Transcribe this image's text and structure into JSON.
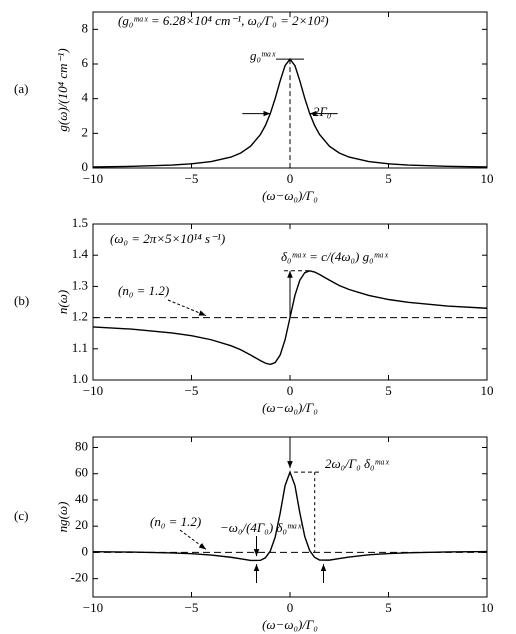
{
  "chart_data": [
    {
      "type": "line",
      "panel_label": "(a)",
      "xlabel": "(ω−ω₀)/Γ₀",
      "ylabel": "g(ω)/(10⁴ cm⁻¹)",
      "annotations": [
        "(g₀ᵐᵃˣ = 6.28×10⁴ cm⁻¹, ω₀/Γ₀ = 2×10²)",
        "g₀ᵐᵃˣ",
        "2Γ₀"
      ],
      "x": [
        -10,
        -8,
        -6,
        -5,
        -4,
        -3,
        -2.5,
        -2,
        -1.5,
        -1.25,
        -1,
        -0.75,
        -0.5,
        -0.25,
        0,
        0.25,
        0.5,
        0.75,
        1,
        1.25,
        1.5,
        2,
        2.5,
        3,
        4,
        5,
        6,
        8,
        10
      ],
      "values": [
        0.062,
        0.097,
        0.17,
        0.242,
        0.369,
        0.628,
        0.866,
        1.256,
        1.932,
        2.451,
        3.14,
        4.019,
        5.024,
        5.911,
        6.28,
        5.911,
        5.024,
        4.019,
        3.14,
        2.451,
        1.932,
        1.256,
        0.866,
        0.628,
        0.369,
        0.242,
        0.17,
        0.097,
        0.062
      ],
      "color": "#000000",
      "xlim": [
        -10,
        10
      ],
      "xticks": [
        {
          "value": -10,
          "label": "−10"
        },
        {
          "value": -5,
          "label": "−5"
        },
        0,
        5,
        10
      ],
      "ylim": [
        0,
        9
      ],
      "yticks": [
        0,
        2,
        4,
        6,
        8
      ]
    },
    {
      "type": "line",
      "panel_label": "(b)",
      "xlabel": "(ω−ω₀)/Γ₀",
      "ylabel": "n(ω)",
      "annotations": [
        "(ω₀ = 2π×5×10¹⁴ s⁻¹)",
        "δ₀ᵐᵃˣ = c/(4ω₀) g₀ᵐᵃˣ",
        "(n₀ = 1.2)"
      ],
      "x": [
        -10,
        -8,
        -6,
        -5,
        -4,
        -3,
        -2.5,
        -2,
        -1.5,
        -1.25,
        -1,
        -0.75,
        -0.5,
        -0.25,
        0,
        0.25,
        0.5,
        0.75,
        1,
        1.25,
        1.5,
        2,
        2.5,
        3,
        4,
        5,
        6,
        8,
        10
      ],
      "values": [
        1.17,
        1.163,
        1.151,
        1.142,
        1.129,
        1.11,
        1.097,
        1.08,
        1.062,
        1.054,
        1.05,
        1.056,
        1.08,
        1.129,
        1.2,
        1.271,
        1.32,
        1.344,
        1.35,
        1.346,
        1.338,
        1.32,
        1.303,
        1.29,
        1.271,
        1.258,
        1.249,
        1.237,
        1.23
      ],
      "color": "#000000",
      "xlim": [
        -10,
        10
      ],
      "xticks": [
        {
          "value": -10,
          "label": "−10"
        },
        {
          "value": -5,
          "label": "−5"
        },
        0,
        5,
        10
      ],
      "ylim": [
        1.0,
        1.5
      ],
      "yticks": [
        {
          "value": 1.0,
          "label": "1.0"
        },
        1.1,
        1.2,
        1.3,
        1.4,
        {
          "value": 1.5,
          "label": "1.5"
        }
      ]
    },
    {
      "type": "line",
      "panel_label": "(c)",
      "xlabel": "(ω−ω₀)/Γ₀",
      "ylabel": "ng(ω)",
      "annotations": [
        "(n₀ = 1.2)",
        "−ω₀/(4Γ₀) δ₀ᵐᵃˣ",
        "2ω₀/Γ₀ δ₀ᵐᵃˣ"
      ],
      "x": [
        -10,
        -8,
        -6,
        -5,
        -4,
        -3,
        -2.5,
        -2,
        -1.5,
        -1.25,
        -1,
        -0.75,
        -0.5,
        -0.25,
        0,
        0.25,
        0.5,
        0.75,
        1,
        1.25,
        1.5,
        2,
        2.5,
        3,
        4,
        5,
        6,
        8,
        10
      ],
      "values": [
        0.59,
        0.27,
        -0.38,
        -0.99,
        -1.98,
        -3.69,
        -4.89,
        -6.12,
        -6.04,
        -4.09,
        1.05,
        11.81,
        29.88,
        50.96,
        61.2,
        51.1,
        30.12,
        12.09,
        1.35,
        -3.79,
        -5.8,
        -5.88,
        -4.69,
        -3.51,
        -1.84,
        -0.87,
        -0.28,
        0.35,
        0.65
      ],
      "color": "#000000",
      "xlim": [
        -10,
        10
      ],
      "xticks": [
        {
          "value": -10,
          "label": "−10"
        },
        {
          "value": -5,
          "label": "−5"
        },
        0,
        5,
        10
      ],
      "ylim": [
        -34,
        88
      ],
      "yticks": [
        -20,
        0,
        20,
        40,
        60,
        80
      ]
    }
  ]
}
